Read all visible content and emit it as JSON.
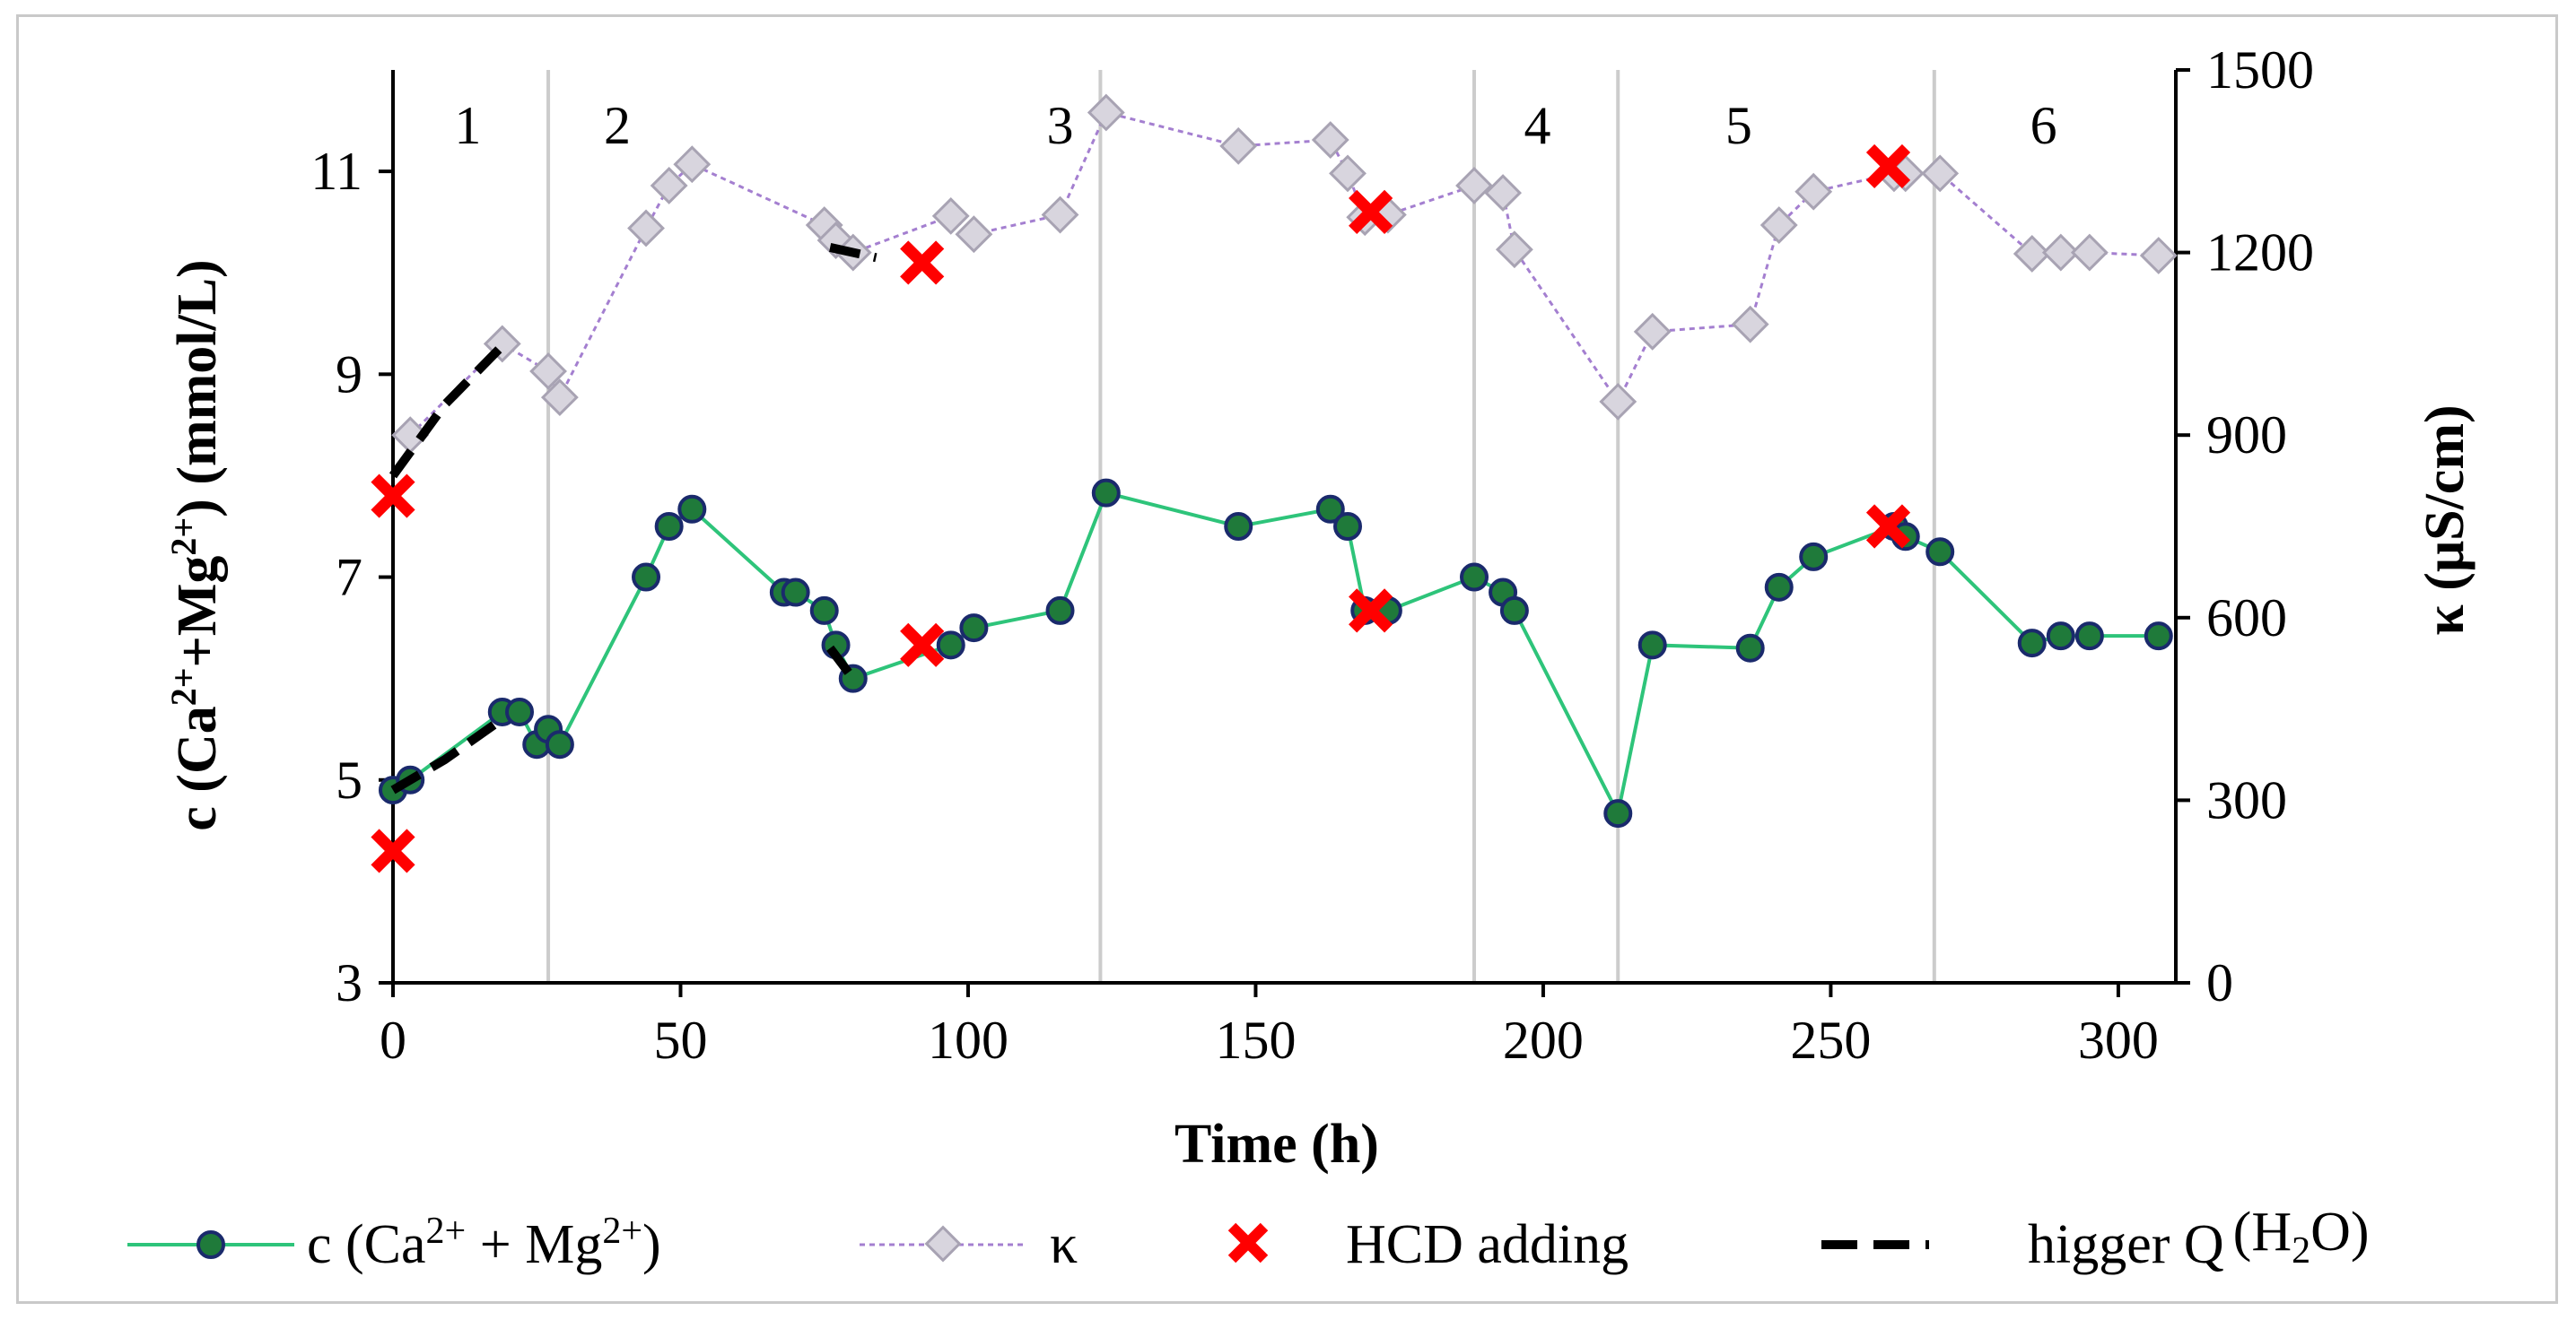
{
  "chart_data": {
    "type": "line",
    "xlabel": "Time (h)",
    "ylabel_left": "c (Ca2++Mg2+) (mmol/L)",
    "ylabel_right": "κ  (μS/cm)",
    "xlim": [
      0,
      310
    ],
    "ylim_left": [
      3,
      12
    ],
    "ylim_right": [
      0,
      1500
    ],
    "x_ticks": [
      0,
      50,
      100,
      150,
      200,
      250,
      300
    ],
    "y_ticks_left": [
      3,
      5,
      7,
      9,
      11
    ],
    "y_ticks_right": [
      0,
      300,
      600,
      900,
      1200,
      1500
    ],
    "phase_boundaries": [
      27,
      123,
      188,
      213,
      268
    ],
    "phase_labels": [
      {
        "label": "1",
        "x": 13
      },
      {
        "label": "2",
        "x": 39
      },
      {
        "label": "3",
        "x": 116
      },
      {
        "label": "4",
        "x": 199
      },
      {
        "label": "5",
        "x": 234
      },
      {
        "label": "6",
        "x": 287
      }
    ],
    "series": [
      {
        "name": "c (Ca2+ + Mg2+)",
        "axis": "left",
        "color": "#2ec47a",
        "marker_fill": "#1f7a3a",
        "marker_stroke": "#1a2a6c",
        "points": [
          [
            0,
            4.9
          ],
          [
            3,
            5.0
          ],
          [
            19,
            5.67
          ],
          [
            22,
            5.67
          ],
          [
            25,
            5.35
          ],
          [
            27,
            5.5
          ],
          [
            29,
            5.35
          ],
          [
            44,
            7.0
          ],
          [
            48,
            7.5
          ],
          [
            52,
            7.67
          ],
          [
            68,
            6.85
          ],
          [
            70,
            6.85
          ],
          [
            75,
            6.67
          ],
          [
            77,
            6.33
          ],
          [
            80,
            6.0
          ],
          [
            97,
            6.33
          ],
          [
            101,
            6.5
          ],
          [
            116,
            6.67
          ],
          [
            124,
            7.83
          ],
          [
            147,
            7.5
          ],
          [
            163,
            7.67
          ],
          [
            166,
            7.5
          ],
          [
            169,
            6.67
          ],
          [
            173,
            6.67
          ],
          [
            188,
            7.0
          ],
          [
            193,
            6.85
          ],
          [
            195,
            6.67
          ],
          [
            213,
            4.67
          ],
          [
            219,
            6.33
          ],
          [
            236,
            6.3
          ],
          [
            241,
            6.9
          ],
          [
            247,
            7.2
          ],
          [
            261,
            7.5
          ],
          [
            263,
            7.4
          ],
          [
            269,
            7.25
          ],
          [
            285,
            6.35
          ],
          [
            290,
            6.42
          ],
          [
            295,
            6.42
          ],
          [
            307,
            6.42
          ]
        ]
      },
      {
        "name": "κ",
        "axis": "right",
        "color": "#a47fd0",
        "marker_fill": "#d8d5de",
        "marker_stroke": "#a8a3b3",
        "points": [
          [
            3,
            900
          ],
          [
            19,
            1050
          ],
          [
            27,
            1005
          ],
          [
            29,
            962
          ],
          [
            44,
            1240
          ],
          [
            48,
            1310
          ],
          [
            52,
            1345
          ],
          [
            75,
            1245
          ],
          [
            77,
            1220
          ],
          [
            80,
            1200
          ],
          [
            97,
            1260
          ],
          [
            101,
            1230
          ],
          [
            116,
            1262
          ],
          [
            124,
            1430
          ],
          [
            147,
            1375
          ],
          [
            163,
            1385
          ],
          [
            166,
            1330
          ],
          [
            169,
            1258
          ],
          [
            173,
            1262
          ],
          [
            188,
            1310
          ],
          [
            193,
            1298
          ],
          [
            195,
            1205
          ],
          [
            213,
            955
          ],
          [
            219,
            1070
          ],
          [
            236,
            1082
          ],
          [
            241,
            1245
          ],
          [
            247,
            1300
          ],
          [
            261,
            1330
          ],
          [
            263,
            1330
          ],
          [
            269,
            1330
          ],
          [
            285,
            1198
          ],
          [
            290,
            1200
          ],
          [
            295,
            1200
          ],
          [
            307,
            1195
          ]
        ]
      },
      {
        "name": "HCD adding",
        "color": "#ff0000",
        "points_left": [
          [
            0,
            4.3
          ],
          [
            0,
            7.8
          ],
          [
            92,
            6.33
          ],
          [
            92,
            10.1
          ],
          [
            170,
            6.67
          ],
          [
            170,
            10.6
          ],
          [
            260,
            7.5
          ],
          [
            260,
            11.05
          ]
        ]
      },
      {
        "name": "higger Q (H2O)",
        "color": "#000000",
        "segments_left": [
          [
            [
              0,
              4.9
            ],
            [
              9,
              5.2
            ],
            [
              19,
              5.6
            ]
          ],
          [
            [
              0,
              8.0
            ],
            [
              9,
              8.7
            ],
            [
              19,
              9.28
            ]
          ],
          [
            [
              76,
              6.3
            ],
            [
              80,
              6.0
            ]
          ],
          [
            [
              76,
              10.25
            ],
            [
              84,
              10.15
            ]
          ]
        ]
      }
    ]
  },
  "legend": {
    "series1_prefix": "c (Ca",
    "series1_sup1": "2+",
    "series1_mid": " + Mg",
    "series1_sup2": "2+",
    "series1_suffix": ")",
    "series2_label": "κ",
    "series3_label": "HCD adding",
    "series4_prefix": "higger Q",
    "series4_formula_a": "(H",
    "series4_sub": "2",
    "series4_formula_b": "O)"
  },
  "axes": {
    "ylabel_left_prefix": "c (Ca",
    "ylabel_left_sup1": "2+",
    "ylabel_left_mid": "+Mg",
    "ylabel_left_sup2": "2+",
    "ylabel_left_suffix": ") (mmol/L)"
  }
}
